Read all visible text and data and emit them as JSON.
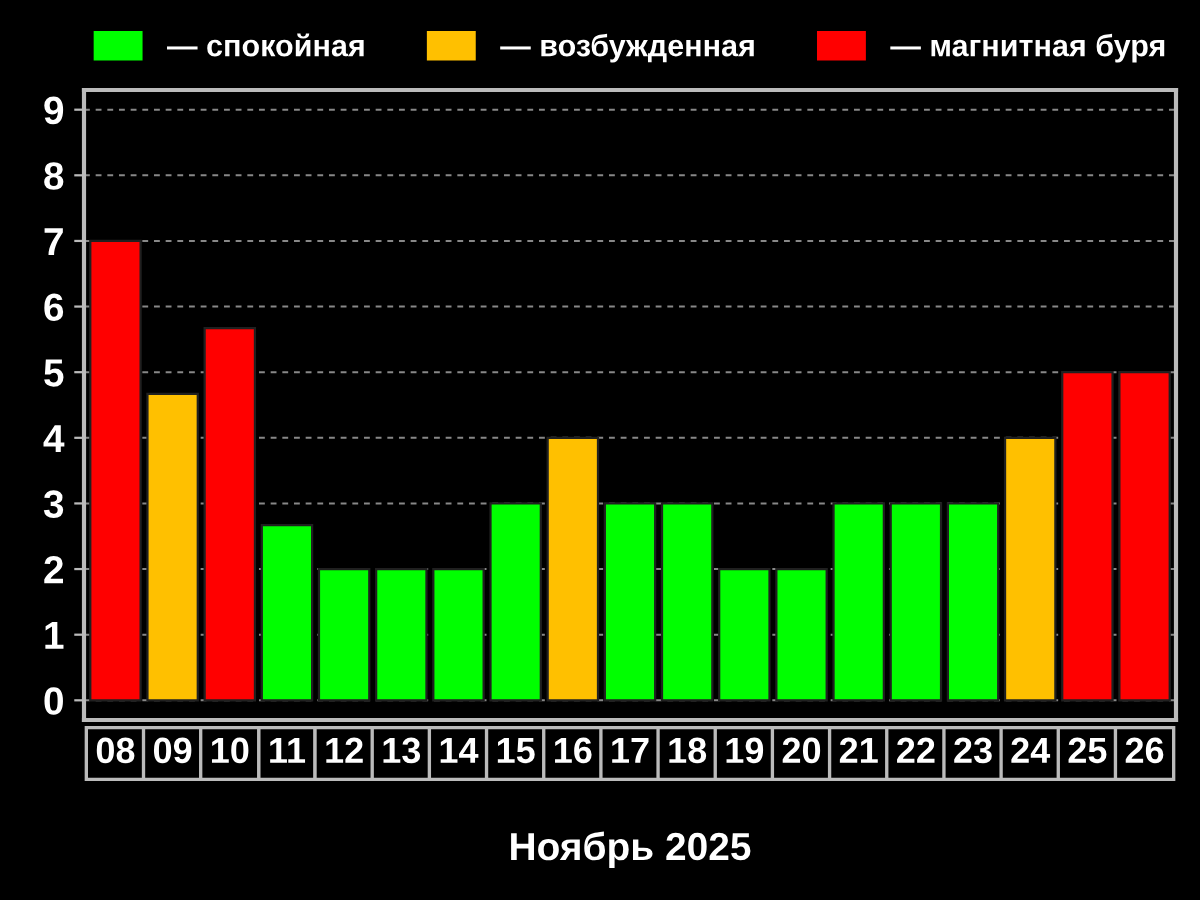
{
  "chart_data": {
    "type": "bar",
    "xlabel": "Ноябрь 2025",
    "categories": [
      "08",
      "09",
      "10",
      "11",
      "12",
      "13",
      "14",
      "15",
      "16",
      "17",
      "18",
      "19",
      "20",
      "21",
      "22",
      "23",
      "24",
      "25",
      "26"
    ],
    "stacked": true,
    "series": [
      {
        "name": "— спокойная",
        "color": "#00ff00",
        "values": [
          null,
          null,
          null,
          2.67,
          2,
          2,
          2,
          3,
          null,
          3,
          3,
          2,
          2,
          3,
          3,
          3,
          null,
          null,
          null
        ]
      },
      {
        "name": "— возбужденная",
        "color": "#ffc000",
        "values": [
          null,
          4.67,
          null,
          null,
          null,
          null,
          null,
          null,
          4,
          null,
          null,
          null,
          null,
          null,
          null,
          null,
          4,
          null,
          null
        ]
      },
      {
        "name": "— магнитная буря",
        "color": "#ff0000",
        "values": [
          7,
          null,
          5.67,
          null,
          null,
          null,
          null,
          null,
          null,
          null,
          null,
          null,
          null,
          null,
          null,
          null,
          null,
          5,
          5
        ]
      }
    ],
    "ylim": [
      -0.3,
      9.3
    ],
    "yticks": [
      0,
      1,
      2,
      3,
      4,
      5,
      6,
      7,
      8,
      9
    ],
    "grid": "y",
    "legend": "top"
  }
}
